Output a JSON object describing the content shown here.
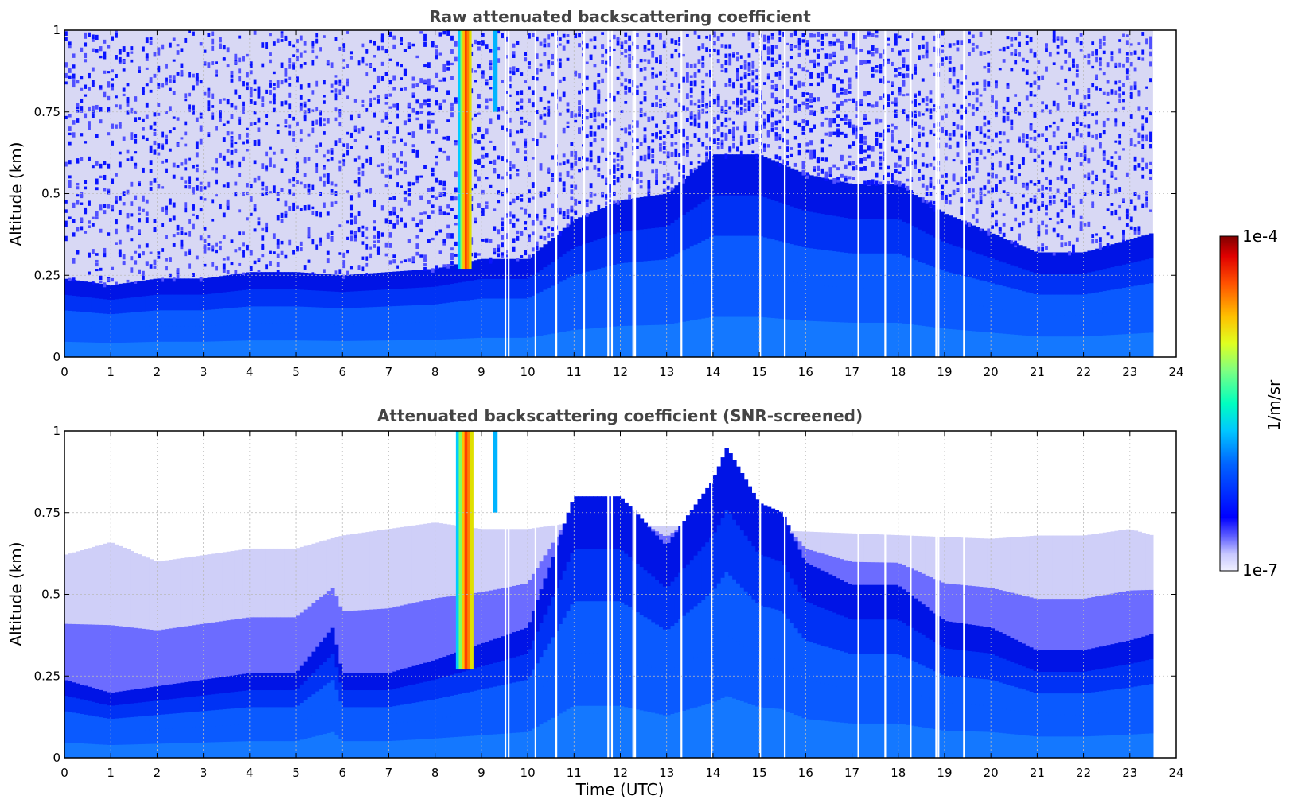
{
  "chart_data": [
    {
      "type": "heatmap",
      "title": "Raw attenuated backscattering coefficient",
      "xlabel": "",
      "ylabel": "Altitude (km)",
      "xlim": [
        0,
        24
      ],
      "ylim": [
        0,
        1
      ],
      "x_ticks": [
        "0",
        "1",
        "2",
        "3",
        "4",
        "5",
        "6",
        "7",
        "8",
        "9",
        "10",
        "11",
        "12",
        "13",
        "14",
        "15",
        "16",
        "17",
        "18",
        "19",
        "20",
        "21",
        "22",
        "23",
        "24"
      ],
      "y_ticks": [
        "0",
        "0.25",
        "0.5",
        "0.75",
        "1"
      ],
      "grid": true,
      "data_end_time": 23.5,
      "layer_top_km": [
        [
          0,
          0.24
        ],
        [
          1,
          0.22
        ],
        [
          2,
          0.24
        ],
        [
          3,
          0.24
        ],
        [
          4,
          0.26
        ],
        [
          5,
          0.26
        ],
        [
          6,
          0.25
        ],
        [
          7,
          0.26
        ],
        [
          8,
          0.27
        ],
        [
          9,
          0.3
        ],
        [
          10,
          0.3
        ],
        [
          11,
          0.42
        ],
        [
          12,
          0.48
        ],
        [
          13,
          0.5
        ],
        [
          14,
          0.62
        ],
        [
          15,
          0.62
        ],
        [
          16,
          0.56
        ],
        [
          17,
          0.53
        ],
        [
          18,
          0.53
        ],
        [
          19,
          0.44
        ],
        [
          20,
          0.38
        ],
        [
          21,
          0.32
        ],
        [
          22,
          0.32
        ],
        [
          23,
          0.36
        ],
        [
          23.5,
          0.38
        ]
      ],
      "cloud_columns_utc": [
        [
          8.5,
          8.78
        ],
        [
          9.25,
          9.35
        ]
      ],
      "data_gaps_utc": [
        9.5,
        9.57,
        10.15,
        10.6,
        11.2,
        11.72,
        11.8,
        12.26,
        12.3,
        13.3,
        13.95,
        15.0,
        15.53,
        17.12,
        17.7,
        18.25,
        18.8,
        18.85,
        19.4
      ]
    },
    {
      "type": "heatmap",
      "title": "Attenuated backscattering coefficient (SNR-screened)",
      "xlabel": "Time (UTC)",
      "ylabel": "Altitude (km)",
      "xlim": [
        0,
        24
      ],
      "ylim": [
        0,
        1
      ],
      "x_ticks": [
        "0",
        "1",
        "2",
        "3",
        "4",
        "5",
        "6",
        "7",
        "8",
        "9",
        "10",
        "11",
        "12",
        "13",
        "14",
        "15",
        "16",
        "17",
        "18",
        "19",
        "20",
        "21",
        "22",
        "23",
        "24"
      ],
      "y_ticks": [
        "0",
        "0.25",
        "0.5",
        "0.75",
        "1"
      ],
      "grid": true,
      "data_end_time": 23.5,
      "layer_top_km": [
        [
          0,
          0.24
        ],
        [
          1,
          0.2
        ],
        [
          2,
          0.22
        ],
        [
          3,
          0.24
        ],
        [
          4,
          0.26
        ],
        [
          5,
          0.26
        ],
        [
          5.8,
          0.4
        ],
        [
          6,
          0.26
        ],
        [
          7,
          0.26
        ],
        [
          8,
          0.3
        ],
        [
          9,
          0.35
        ],
        [
          10,
          0.4
        ],
        [
          11,
          0.8
        ],
        [
          12,
          0.8
        ],
        [
          13,
          0.65
        ],
        [
          14,
          0.85
        ],
        [
          14.3,
          0.95
        ],
        [
          15,
          0.78
        ],
        [
          15.5,
          0.75
        ],
        [
          16,
          0.6
        ],
        [
          17,
          0.53
        ],
        [
          18,
          0.53
        ],
        [
          19,
          0.42
        ],
        [
          20,
          0.4
        ],
        [
          21,
          0.33
        ],
        [
          22,
          0.33
        ],
        [
          23,
          0.36
        ],
        [
          23.5,
          0.38
        ]
      ],
      "screened_top_km": [
        [
          0,
          0.62
        ],
        [
          1,
          0.66
        ],
        [
          2,
          0.6
        ],
        [
          3,
          0.62
        ],
        [
          4,
          0.64
        ],
        [
          5,
          0.64
        ],
        [
          6,
          0.68
        ],
        [
          7,
          0.7
        ],
        [
          8,
          0.72
        ],
        [
          9,
          0.7
        ],
        [
          10,
          0.7
        ],
        [
          11,
          0.72
        ],
        [
          20,
          0.67
        ],
        [
          21,
          0.68
        ],
        [
          22,
          0.68
        ],
        [
          23,
          0.7
        ],
        [
          23.5,
          0.68
        ]
      ],
      "cloud_columns_utc": [
        [
          8.45,
          8.82
        ],
        [
          9.25,
          9.35
        ]
      ],
      "data_gaps_utc": [
        9.5,
        9.57,
        10.15,
        10.6,
        11.72,
        11.8,
        12.26,
        12.3,
        13.3,
        13.95,
        15.0,
        15.53,
        17.12,
        17.7,
        18.25,
        18.8,
        18.85,
        19.4
      ]
    }
  ],
  "colorbar": {
    "label": "1/m/sr",
    "min_label": "1e-7",
    "max_label": "1e-4",
    "colormap": "jet",
    "scale": "log"
  },
  "colors": {
    "title": "#444444",
    "grid": "#bbbbbb",
    "gap": "#ffffff"
  }
}
